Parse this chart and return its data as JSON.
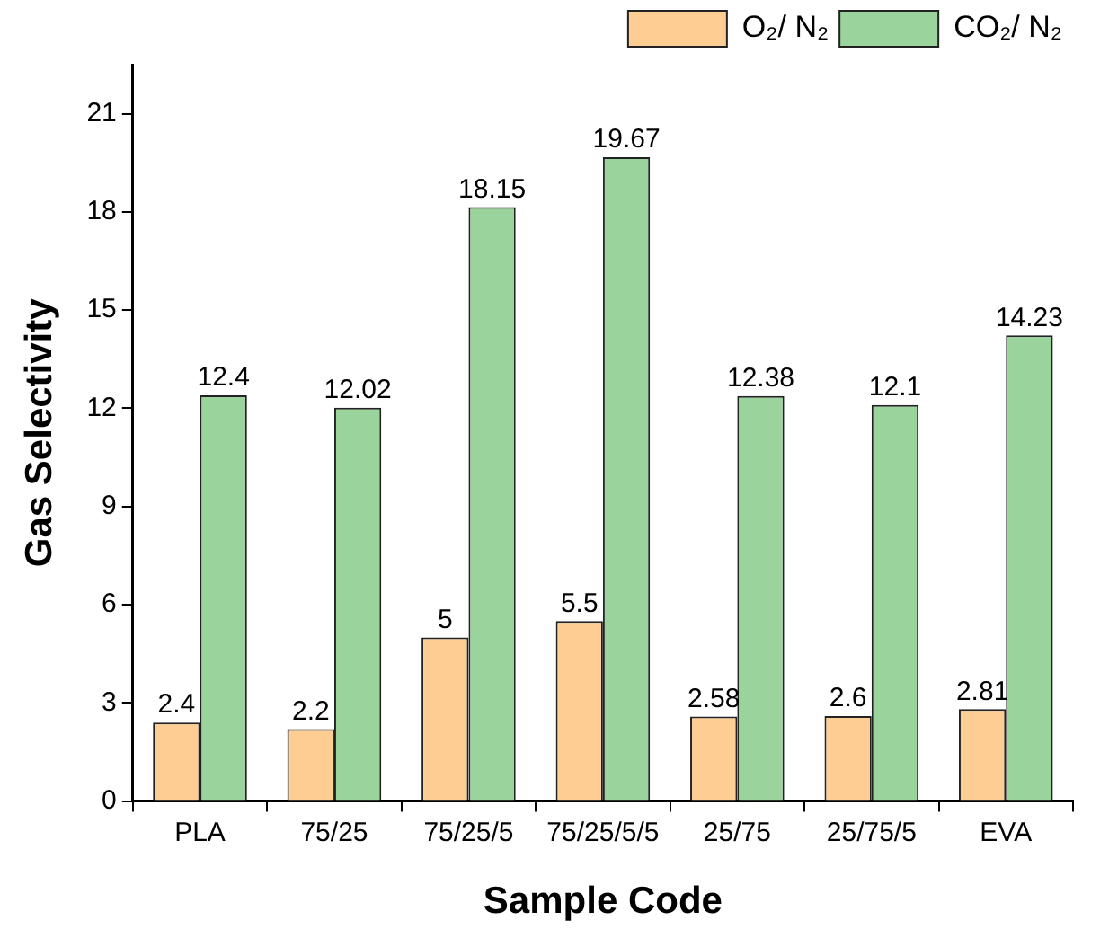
{
  "chart_data": {
    "type": "bar",
    "xlabel": "Sample Code",
    "ylabel": "Gas Selectivity",
    "categories": [
      "PLA",
      "75/25",
      "75/25/5",
      "75/25/5/5",
      "25/75",
      "25/75/5",
      "EVA"
    ],
    "series": [
      {
        "name": "O₂/ N₂",
        "color": "#fdcd94",
        "values": [
          2.4,
          2.2,
          5,
          5.5,
          2.58,
          2.6,
          2.81
        ]
      },
      {
        "name": "CO₂/ N₂",
        "color": "#9ad39c",
        "values": [
          12.4,
          12.02,
          18.15,
          19.67,
          12.38,
          12.1,
          14.23
        ]
      }
    ],
    "ylim": [
      0,
      22.5
    ],
    "yticks": [
      0,
      3,
      6,
      9,
      12,
      15,
      18,
      21
    ],
    "grid": false,
    "legend": "top right",
    "data_labels": true
  }
}
